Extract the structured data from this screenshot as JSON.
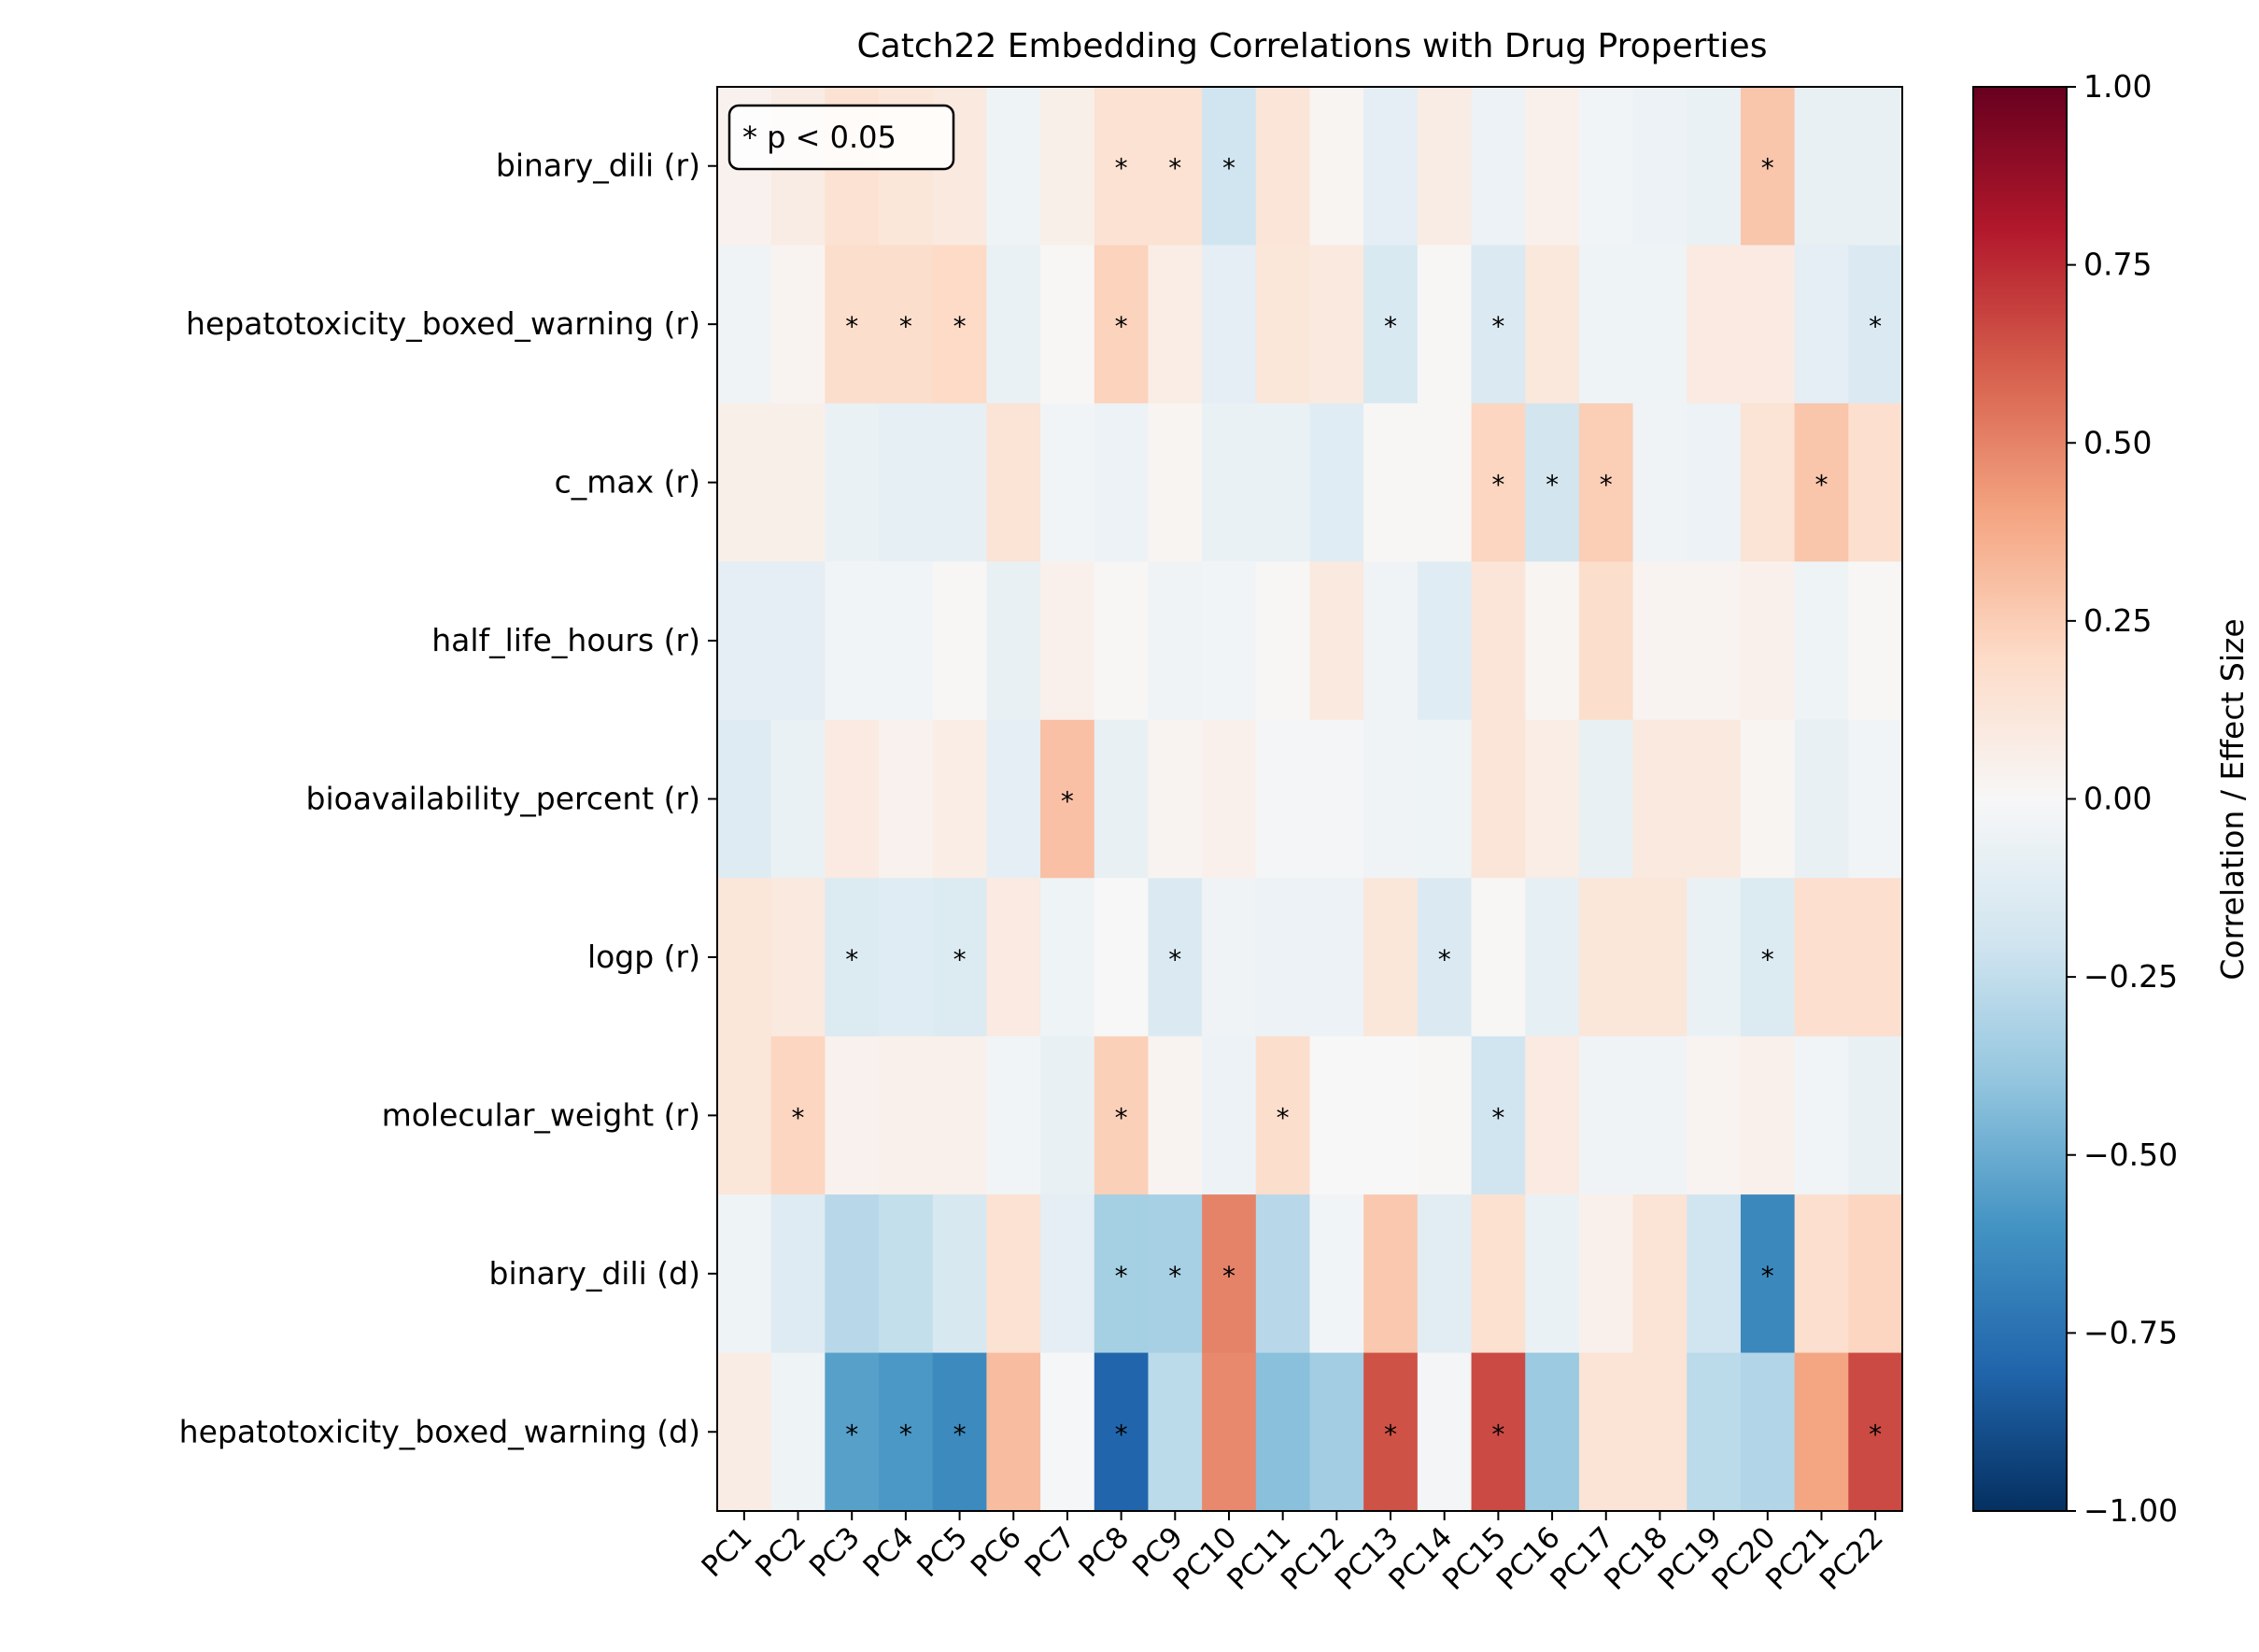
{
  "chart_data": {
    "type": "heatmap",
    "title": "Catch22 Embedding Correlations with Drug Properties",
    "x_categories": [
      "PC1",
      "PC2",
      "PC3",
      "PC4",
      "PC5",
      "PC6",
      "PC7",
      "PC8",
      "PC9",
      "PC10",
      "PC11",
      "PC12",
      "PC13",
      "PC14",
      "PC15",
      "PC16",
      "PC17",
      "PC18",
      "PC19",
      "PC20",
      "PC21",
      "PC22"
    ],
    "y_categories": [
      "binary_dili (r)",
      "hepatotoxicity_boxed_warning (r)",
      "c_max (r)",
      "half_life_hours (r)",
      "bioavailability_percent (r)",
      "logp (r)",
      "molecular_weight (r)",
      "binary_dili (d)",
      "hepatotoxicity_boxed_warning (d)"
    ],
    "values": [
      [
        0.04,
        0.08,
        0.15,
        0.12,
        0.1,
        -0.05,
        0.06,
        0.15,
        0.15,
        -0.2,
        0.13,
        0.02,
        -0.1,
        0.08,
        -0.06,
        0.05,
        -0.03,
        -0.06,
        -0.07,
        0.28,
        -0.08,
        -0.08
      ],
      [
        -0.04,
        0.03,
        0.18,
        0.18,
        0.2,
        -0.07,
        0.01,
        0.23,
        0.07,
        -0.1,
        0.12,
        0.1,
        -0.16,
        0.01,
        -0.15,
        0.11,
        -0.05,
        -0.05,
        0.09,
        0.09,
        -0.1,
        -0.15
      ],
      [
        0.06,
        0.06,
        -0.07,
        -0.09,
        -0.09,
        0.14,
        -0.03,
        -0.06,
        0.02,
        -0.07,
        -0.07,
        -0.12,
        0.01,
        0.01,
        0.22,
        -0.19,
        0.25,
        -0.04,
        -0.06,
        0.14,
        0.28,
        0.17
      ],
      [
        -0.1,
        -0.1,
        -0.03,
        -0.03,
        0.01,
        -0.08,
        0.05,
        0.01,
        -0.04,
        -0.03,
        0.01,
        0.1,
        -0.04,
        -0.12,
        0.13,
        0.02,
        0.18,
        0.03,
        0.03,
        0.05,
        -0.05,
        0.01
      ],
      [
        -0.13,
        -0.07,
        0.09,
        0.04,
        0.07,
        -0.1,
        0.3,
        -0.08,
        0.03,
        0.05,
        -0.02,
        -0.02,
        -0.04,
        -0.05,
        0.13,
        0.07,
        -0.08,
        0.1,
        0.1,
        0.02,
        -0.08,
        -0.03
      ],
      [
        0.12,
        0.1,
        -0.14,
        -0.12,
        -0.14,
        0.09,
        -0.05,
        0.0,
        -0.15,
        -0.04,
        -0.06,
        -0.06,
        0.12,
        -0.15,
        0.01,
        -0.09,
        0.12,
        0.12,
        -0.07,
        -0.14,
        0.17,
        0.17
      ],
      [
        0.12,
        0.22,
        0.04,
        0.05,
        0.05,
        -0.03,
        -0.08,
        0.24,
        0.03,
        -0.06,
        0.18,
        0.0,
        0.0,
        0.01,
        -0.2,
        0.09,
        -0.04,
        -0.04,
        0.03,
        0.05,
        -0.03,
        -0.08
      ],
      [
        -0.05,
        -0.13,
        -0.28,
        -0.24,
        -0.17,
        0.15,
        -0.1,
        -0.34,
        -0.33,
        0.5,
        -0.28,
        -0.03,
        0.27,
        -0.11,
        0.16,
        -0.07,
        0.05,
        0.14,
        -0.2,
        -0.65,
        0.17,
        0.22
      ],
      [
        0.08,
        -0.05,
        -0.55,
        -0.58,
        -0.64,
        0.31,
        -0.01,
        -0.8,
        -0.27,
        0.48,
        -0.42,
        -0.35,
        0.64,
        -0.02,
        0.66,
        -0.37,
        0.14,
        0.14,
        -0.27,
        -0.3,
        0.4,
        0.66
      ]
    ],
    "significant": [
      [
        7,
        8,
        9,
        19
      ],
      [
        2,
        3,
        4,
        7,
        12,
        14,
        21
      ],
      [
        14,
        15,
        16,
        20
      ],
      [],
      [
        6
      ],
      [
        2,
        4,
        8,
        13,
        19
      ],
      [
        1,
        7,
        10,
        14
      ],
      [
        7,
        8,
        9,
        19
      ],
      [
        2,
        3,
        4,
        7,
        12,
        14,
        21
      ]
    ],
    "significance_marker": "*",
    "annotation": "* p < 0.05",
    "colorbar": {
      "label": "Correlation / Effect Size",
      "range": [
        -1.0,
        1.0
      ],
      "colormap": "RdBu_r",
      "ticks": [
        "1.00",
        "0.75",
        "0.50",
        "0.25",
        "0.00",
        "−0.25",
        "−0.50",
        "−0.75",
        "−1.00"
      ],
      "tick_values": [
        1.0,
        0.75,
        0.5,
        0.25,
        0.0,
        -0.25,
        -0.5,
        -0.75,
        -1.0
      ]
    }
  }
}
